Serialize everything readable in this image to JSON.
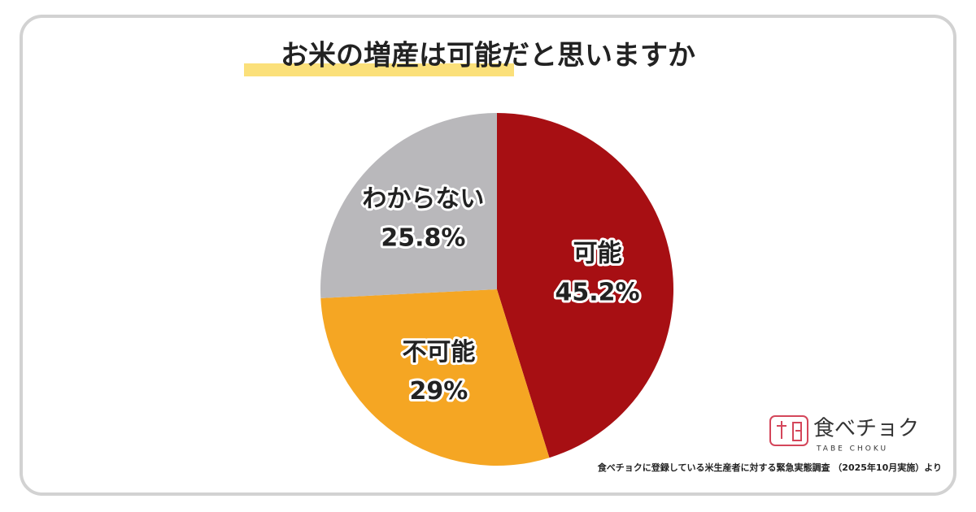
{
  "chart_data": {
    "type": "pie",
    "title": "お米の増産は可能だと思いますか",
    "categories": [
      "可能",
      "不可能",
      "わからない"
    ],
    "values": [
      45.2,
      29,
      25.8
    ],
    "value_labels": [
      "45.2%",
      "29%",
      "25.8%"
    ],
    "colors": [
      "#a70f13",
      "#f5a623",
      "#b9b8bb"
    ],
    "source": "食べチョクに登録している米生産者に対する緊急実態調査 （2025年10月実施）より"
  },
  "brand": {
    "name": "食べチョク",
    "subtitle": "TABE CHOKU"
  }
}
